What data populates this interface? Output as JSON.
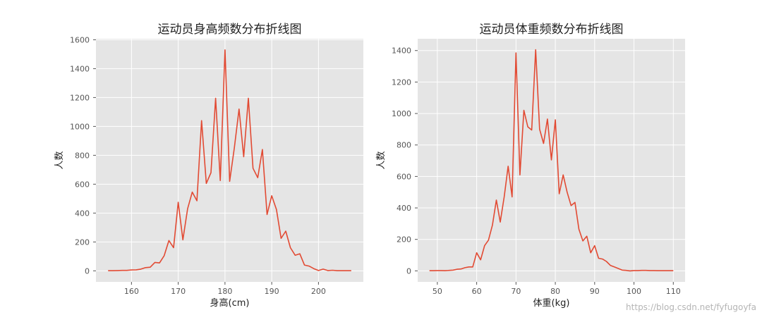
{
  "watermark": "https://blog.csdn.net/fyfugoyfa",
  "colors": {
    "line": "#e24a33",
    "plot_bg": "#e5e5e5",
    "grid": "#ffffff",
    "tick": "#555555",
    "text": "#222222"
  },
  "chart_data": [
    {
      "type": "line",
      "title": "运动员身高频数分布折线图",
      "xlabel": "身高(cm)",
      "ylabel": "人数",
      "xlim": [
        152.4,
        209.6
      ],
      "ylim": [
        -76.5,
        1607
      ],
      "xticks": [
        160,
        170,
        180,
        190,
        200
      ],
      "yticks": [
        0,
        200,
        400,
        600,
        800,
        1000,
        1200,
        1400,
        1600
      ],
      "grid": true,
      "series": [
        {
          "x": [
            155,
            156,
            157,
            158,
            159,
            160,
            161,
            162,
            163,
            164,
            165,
            166,
            167,
            168,
            169,
            170,
            171,
            172,
            173,
            174,
            175,
            176,
            177,
            178,
            179,
            180,
            181,
            182,
            183,
            184,
            185,
            186,
            187,
            188,
            189,
            190,
            191,
            192,
            193,
            194,
            195,
            196,
            197,
            198,
            199,
            200,
            201,
            202,
            203,
            204,
            205,
            206,
            207
          ],
          "values": [
            1,
            1,
            2,
            3,
            3,
            6,
            7,
            12,
            22,
            25,
            58,
            55,
            105,
            210,
            160,
            475,
            215,
            430,
            545,
            485,
            1040,
            605,
            680,
            1195,
            625,
            1530,
            620,
            850,
            1120,
            790,
            1195,
            710,
            645,
            840,
            390,
            520,
            425,
            225,
            275,
            160,
            108,
            118,
            40,
            33,
            15,
            2,
            12,
            2,
            4,
            1,
            1,
            1,
            1
          ]
        }
      ]
    },
    {
      "type": "line",
      "title": "运动员体重频数分布折线图",
      "xlabel": "体重(kg)",
      "ylabel": "人数",
      "xlim": [
        45,
        113
      ],
      "ylim": [
        -70,
        1475
      ],
      "xticks": [
        50,
        60,
        70,
        80,
        90,
        100,
        110
      ],
      "yticks": [
        0,
        200,
        400,
        600,
        800,
        1000,
        1200,
        1400
      ],
      "grid": true,
      "series": [
        {
          "x": [
            48,
            49,
            50,
            51,
            52,
            53,
            54,
            55,
            56,
            57,
            58,
            59,
            60,
            61,
            62,
            63,
            64,
            65,
            66,
            67,
            68,
            69,
            70,
            71,
            72,
            73,
            74,
            75,
            76,
            77,
            78,
            79,
            80,
            81,
            82,
            83,
            84,
            85,
            86,
            87,
            88,
            89,
            90,
            91,
            92,
            93,
            94,
            95,
            96,
            97,
            98,
            99,
            100,
            101,
            102,
            103,
            104,
            105,
            106,
            107,
            108,
            109,
            110
          ],
          "values": [
            1,
            1,
            2,
            2,
            1,
            3,
            5,
            10,
            12,
            20,
            25,
            25,
            115,
            70,
            160,
            195,
            290,
            450,
            310,
            470,
            665,
            470,
            1385,
            610,
            1020,
            915,
            895,
            1405,
            900,
            810,
            965,
            705,
            960,
            490,
            610,
            500,
            415,
            435,
            265,
            190,
            220,
            115,
            160,
            80,
            75,
            60,
            35,
            25,
            15,
            5,
            3,
            0,
            2,
            2,
            3,
            3,
            2,
            2,
            1,
            1,
            1,
            1,
            1
          ]
        }
      ]
    }
  ]
}
